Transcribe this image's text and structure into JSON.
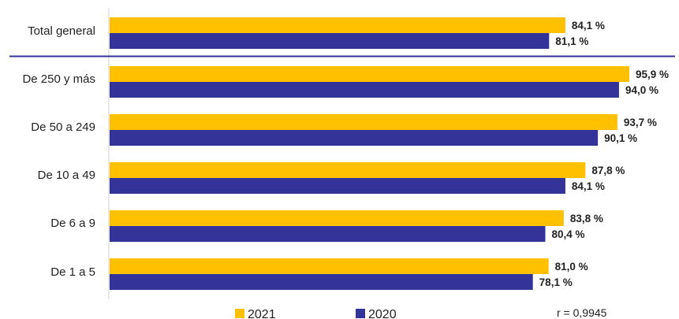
{
  "chart_data": {
    "type": "bar",
    "orientation": "horizontal",
    "categories": [
      "Total general",
      "De 250 y más",
      "De 50 a 249",
      "De 10 a 49",
      "De 6 a 9",
      "De 1 a 5"
    ],
    "series": [
      {
        "name": "2021",
        "color": "#FFC000",
        "values": [
          84.1,
          95.9,
          93.7,
          87.8,
          83.8,
          81.0
        ],
        "labels": [
          "84,1 %",
          "95,9 %",
          "93,7 %",
          "87,8 %",
          "83,8 %",
          "81,0 %"
        ]
      },
      {
        "name": "2020",
        "color": "#333399",
        "values": [
          81.1,
          94.0,
          90.1,
          84.1,
          80.4,
          78.1
        ],
        "labels": [
          "81,1 %",
          "94,0 %",
          "90,1 %",
          "84,1 %",
          "80,4 %",
          "78,1 %"
        ]
      }
    ],
    "xlim": [
      0,
      100
    ],
    "grid": false,
    "legend_position": "bottom",
    "separator_after_category": "Total general",
    "separator_color": "#333399",
    "annotation": "r = 0,9945"
  }
}
